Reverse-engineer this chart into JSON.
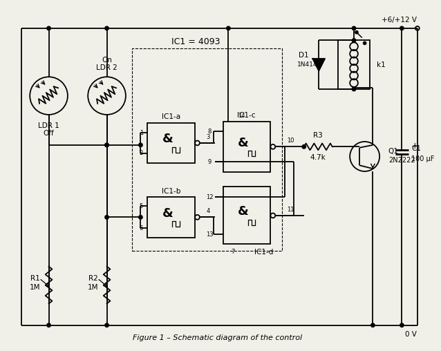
{
  "title": "Figure 1 – Schematic diagram of the control",
  "bg_color": "#f0f0e8",
  "line_color": "#000000",
  "vcc_label": "+6/+12 V",
  "gnd_label": "0 V",
  "ic1_label": "IC1 = 4093",
  "ldr1_label": "LDR 1\nOff",
  "ldr2_label": "LDR 2\nOn",
  "ic1a_label": "IC1-a",
  "ic1b_label": "IC1-b",
  "ic1c_label": "IC1-c",
  "ic1d_label": "IC1-d",
  "r1_label": "R1\n1M",
  "r2_label": "R2\n1M",
  "r3_label": "R3\n4.7k",
  "d1_label": "D1\n1N4148",
  "q1_label": "Q1\n2N2222",
  "k1_label": "k1",
  "c1_label": "C1\n100 μF"
}
